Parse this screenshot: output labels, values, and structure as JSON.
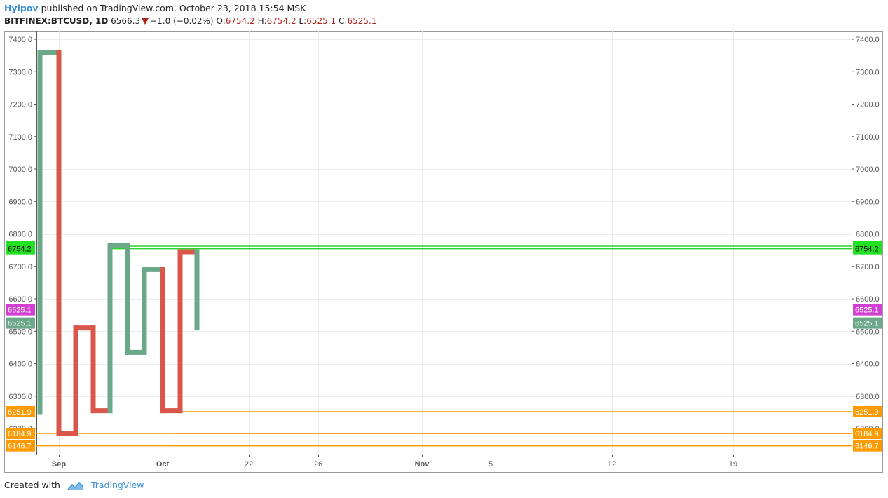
{
  "header": {
    "author": "Hyipov",
    "published_text": "published on TradingView.com, October 23, 2018 15:54 MSK",
    "symbol": "BITFINEX:BTCUSD, 1D",
    "last_price": "6566.3",
    "change": "−1.0 (−0.02%)",
    "o_label": "O:",
    "o_value": "6754.2",
    "h_label": "H:",
    "h_value": "6754.2",
    "l_label": "L:",
    "l_value": "6525.1",
    "c_label": "C:",
    "c_value": "6525.1"
  },
  "footer": {
    "created_with": "Created with",
    "brand": "TradingView"
  },
  "colors": {
    "up": "#6aa889",
    "down": "#d8574a",
    "green_line": "#2bd32b",
    "green_tag": "#22e022",
    "orange": "#ff9a00",
    "magenta": "#d23fd2",
    "teal_tag": "#6aa889",
    "grid": "#ececec",
    "axis": "#555555"
  },
  "chart_data": {
    "type": "line",
    "style": "kagi",
    "ylim": [
      6140,
      7420
    ],
    "y_ticks": [
      "7400.0",
      "7300.0",
      "7200.0",
      "7100.0",
      "7000.0",
      "6900.0",
      "6800.0",
      "6700.0",
      "6600.0",
      "6500.0",
      "6400.0",
      "6300.0",
      "6200.0"
    ],
    "x_ticks": [
      "Sep",
      "Oct",
      "22",
      "26",
      "Nov",
      "5",
      "12",
      "19"
    ],
    "kagi_points": [
      6251.9,
      7360,
      6185,
      6510,
      6255,
      6765,
      6435,
      6690,
      6255,
      6745,
      6510
    ],
    "kagi_segments": [
      {
        "color": "up"
      },
      {
        "color": "down"
      },
      {
        "color": "down"
      },
      {
        "color": "down"
      },
      {
        "color": "up"
      },
      {
        "color": "up"
      },
      {
        "color": "up"
      },
      {
        "color": "down"
      },
      {
        "color": "down"
      },
      {
        "color": "up"
      }
    ],
    "price_lines": [
      {
        "value": "6762.1",
        "color": "green_line"
      },
      {
        "value": "6754.2",
        "color": "green_line"
      },
      {
        "value": "6251.9",
        "color": "orange"
      },
      {
        "value": "6184.9",
        "color": "orange"
      },
      {
        "value": "6146.7",
        "color": "orange"
      }
    ],
    "price_tags": [
      {
        "value": "6762.1",
        "color": "green_tag",
        "text_color": "#000000"
      },
      {
        "value": "6754.2",
        "color": "green_tag",
        "text_color": "#000000"
      },
      {
        "value": "6525.1",
        "color": "magenta",
        "text_color": "#ffffff",
        "offset": -19
      },
      {
        "value": "6525.1",
        "color": "teal_tag",
        "text_color": "#ffffff"
      },
      {
        "value": "6251.9",
        "color": "orange",
        "text_color": "#ffffff"
      },
      {
        "value": "6184.9",
        "color": "orange",
        "text_color": "#ffffff"
      },
      {
        "value": "6146.7",
        "color": "orange",
        "text_color": "#ffffff"
      }
    ]
  }
}
